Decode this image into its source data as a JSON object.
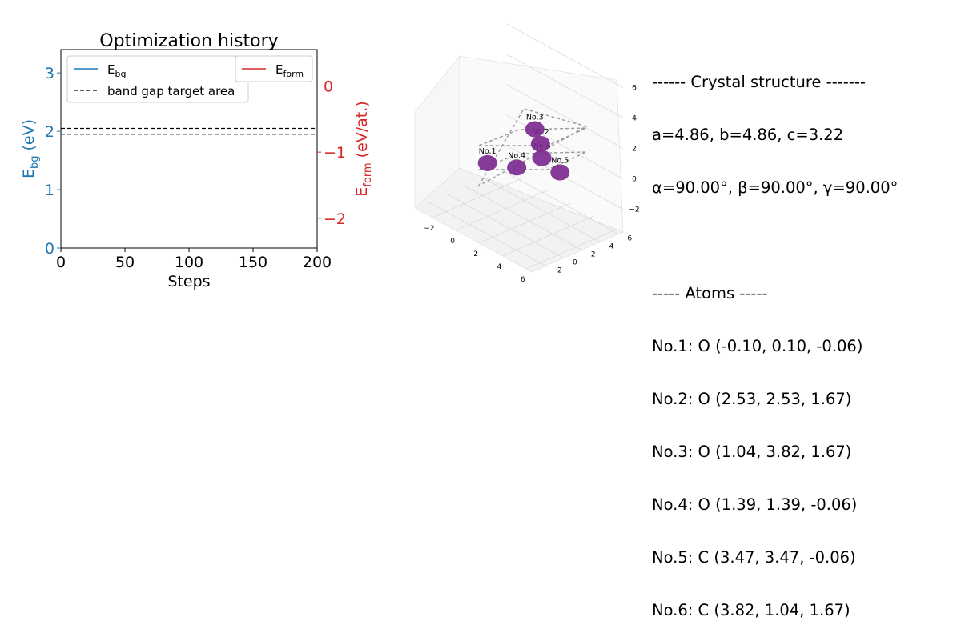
{
  "chart_data": [
    {
      "type": "line",
      "title": "Optimization history",
      "xlabel": "Steps",
      "ylabel_main": "E",
      "ylabel_sub": "bg",
      "ylabel_unit": " (eV)",
      "y2label_main": "E",
      "y2label_sub": "form",
      "y2label_unit": " (eV/at.)",
      "xlim": [
        0,
        200
      ],
      "ylim": [
        0,
        3.4
      ],
      "y2lim": [
        -2.45,
        0.55
      ],
      "xticks": [
        0,
        50,
        100,
        150,
        200
      ],
      "yticks": [
        0,
        1,
        2,
        3
      ],
      "y2ticks": [
        0,
        -1,
        -2
      ],
      "y2tick_labels": [
        "0",
        "−1",
        "−2"
      ],
      "grid": false,
      "band_gap_target_area": [
        1.95,
        2.05
      ],
      "series": [
        {
          "name_main": "E",
          "name_sub": "bg",
          "axis": "left",
          "color": "#1f77b4",
          "x": [],
          "y": []
        },
        {
          "name_main": "E",
          "name_sub": "form",
          "axis": "right",
          "color": "#d62728",
          "x": [],
          "y": []
        }
      ],
      "legend_left": {
        "placement": "upper-left",
        "entries": [
          "E_bg",
          "band gap target area"
        ]
      },
      "legend_right": {
        "placement": "upper-right",
        "entries": [
          "E_form"
        ]
      },
      "target_label": "band gap target area",
      "colors": {
        "left_axis": "#1f77b4",
        "right_axis": "#d62728",
        "target": "#000000"
      }
    },
    {
      "type": "scatter",
      "subtype": "3d",
      "xticks": [
        -2,
        0,
        2,
        4,
        6
      ],
      "yticks": [
        -2,
        0,
        2,
        4,
        6
      ],
      "zticks": [
        -2,
        0,
        2,
        4,
        6
      ],
      "xlim": [
        -3.5,
        6.5
      ],
      "ylim": [
        -3.5,
        6.5
      ],
      "zlim": [
        -3.5,
        6.5
      ],
      "marker_color": "#7b2a8e",
      "atoms": [
        {
          "label": "No.1",
          "element": "O",
          "x": -0.1,
          "y": 0.1,
          "z": -0.06
        },
        {
          "label": "No.2",
          "element": "O",
          "x": 2.53,
          "y": 2.53,
          "z": 1.67
        },
        {
          "label": "No.3",
          "element": "O",
          "x": 1.04,
          "y": 3.82,
          "z": 1.67
        },
        {
          "label": "No.4",
          "element": "O",
          "x": 1.39,
          "y": 1.39,
          "z": -0.06
        },
        {
          "label": "No.5",
          "element": "C",
          "x": 3.47,
          "y": 3.47,
          "z": -0.06
        },
        {
          "label": "No.6",
          "element": "C",
          "x": 3.82,
          "y": 1.04,
          "z": 1.67
        }
      ],
      "cell": {
        "a": 4.86,
        "b": 4.86,
        "c": 3.22
      }
    }
  ],
  "info": {
    "lines": [
      "------ Crystal structure -------",
      "a=4.86, b=4.86, c=3.22",
      "α=90.00°, β=90.00°, γ=90.00°",
      "",
      "----- Atoms -----",
      "No.1: O (-0.10, 0.10, -0.06)",
      "No.2: O (2.53, 2.53, 1.67)",
      "No.3: O (1.04, 3.82, 1.67)",
      "No.4: O (1.39, 1.39, -0.06)",
      "No.5: C (3.47, 3.47, -0.06)",
      "No.6: C (3.82, 1.04, 1.67)"
    ]
  }
}
